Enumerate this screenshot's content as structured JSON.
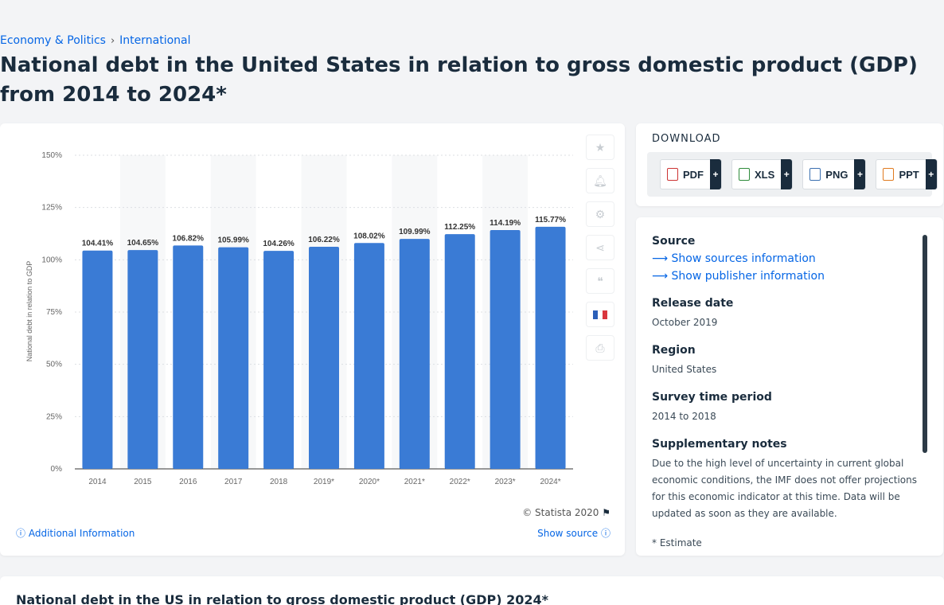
{
  "breadcrumb": [
    "Economy & Politics",
    "International"
  ],
  "page_title": "National debt in the United States in relation to gross domestic product (GDP) from 2014 to 2024*",
  "chart_data": {
    "type": "bar",
    "categories": [
      "2014",
      "2015",
      "2016",
      "2017",
      "2018",
      "2019*",
      "2020*",
      "2021*",
      "2022*",
      "2023*",
      "2024*"
    ],
    "values": [
      104.41,
      104.65,
      106.82,
      105.99,
      104.26,
      106.22,
      108.02,
      109.99,
      112.25,
      114.19,
      115.77
    ],
    "data_labels": [
      "104.41%",
      "104.65%",
      "106.82%",
      "105.99%",
      "104.26%",
      "106.22%",
      "108.02%",
      "109.99%",
      "112.25%",
      "114.19%",
      "115.77%"
    ],
    "ylabel": "National debt in relation to GDP",
    "ylim": [
      0,
      150
    ],
    "yticks": [
      "0%",
      "25%",
      "50%",
      "75%",
      "100%",
      "125%",
      "150%"
    ],
    "bar_color": "#3a7bd5",
    "grid": true
  },
  "chart_footer": {
    "credit": "© Statista 2020",
    "additional_info": "Additional Information",
    "show_source": "Show source"
  },
  "download": {
    "title": "DOWNLOAD",
    "buttons": [
      "PDF",
      "XLS",
      "PNG",
      "PPT"
    ]
  },
  "info": {
    "source_label": "Source",
    "show_sources": "Show sources information",
    "show_publisher": "Show publisher information",
    "release_label": "Release date",
    "release_value": "October 2019",
    "region_label": "Region",
    "region_value": "United States",
    "period_label": "Survey time period",
    "period_value": "2014 to 2018",
    "notes_label": "Supplementary notes",
    "notes_value": "Due to the high level of uncertainty in current global economic conditions, the IMF does not offer projections for this economic indicator at this time. Data will be updated as soon as they are available.",
    "estimate_note": "* Estimate"
  },
  "bottom_title": "National debt in the US in relation to gross domestic product (GDP) 2024*"
}
